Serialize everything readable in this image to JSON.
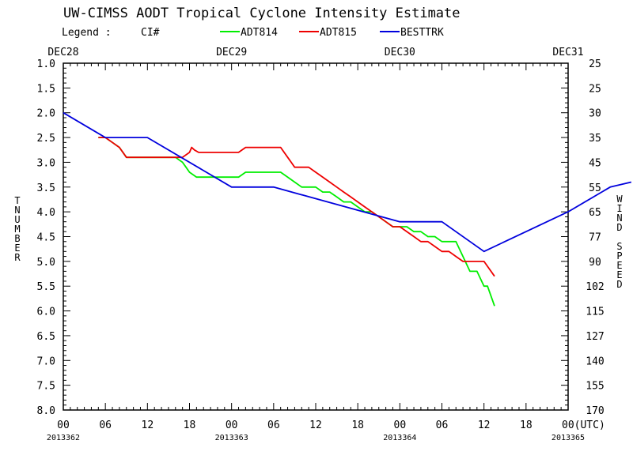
{
  "chart_data": {
    "type": "line",
    "title": "UW-CIMSS AODT Tropical Cyclone Intensity Estimate",
    "legend": {
      "prefix": "Legend :",
      "type_label": "CI#",
      "entries": [
        {
          "name": "ADT814",
          "color": "#00ee00"
        },
        {
          "name": "ADT815",
          "color": "#ee0000"
        },
        {
          "name": "BESTTRK",
          "color": "#0000dd"
        }
      ]
    },
    "ylabel_left": "T NUMBER",
    "ylabel_right": "WIND SPEED",
    "ylim": [
      1.0,
      8.0
    ],
    "xlim_hours": [
      0,
      72
    ],
    "y_ticks": [
      "1.0",
      "1.5",
      "2.0",
      "2.5",
      "3.0",
      "3.5",
      "4.0",
      "4.5",
      "5.0",
      "5.5",
      "6.0",
      "6.5",
      "7.0",
      "7.5",
      "8.0"
    ],
    "wind_ticks": [
      "25",
      "25",
      "30",
      "35",
      "45",
      "55",
      "65",
      "77",
      "90",
      "102",
      "115",
      "127",
      "140",
      "155",
      "170"
    ],
    "top_dates": [
      {
        "label": "DEC28",
        "hour": 0
      },
      {
        "label": "DEC29",
        "hour": 24
      },
      {
        "label": "DEC30",
        "hour": 48
      },
      {
        "label": "DEC31",
        "hour": 72
      }
    ],
    "x_ticks": [
      {
        "hour": 0,
        "label": "00"
      },
      {
        "hour": 6,
        "label": "06"
      },
      {
        "hour": 12,
        "label": "12"
      },
      {
        "hour": 18,
        "label": "18"
      },
      {
        "hour": 24,
        "label": "00"
      },
      {
        "hour": 30,
        "label": "06"
      },
      {
        "hour": 36,
        "label": "12"
      },
      {
        "hour": 42,
        "label": "18"
      },
      {
        "hour": 48,
        "label": "00"
      },
      {
        "hour": 54,
        "label": "06"
      },
      {
        "hour": 60,
        "label": "12"
      },
      {
        "hour": 66,
        "label": "18"
      },
      {
        "hour": 72,
        "label": "00(UTC)"
      }
    ],
    "julian_dates": [
      {
        "label": "2013362",
        "hour": 0
      },
      {
        "label": "2013363",
        "hour": 24
      },
      {
        "label": "2013364",
        "hour": 48
      },
      {
        "label": "2013365",
        "hour": 72
      }
    ],
    "series": [
      {
        "name": "ADT814",
        "color": "#00ee00",
        "points": [
          [
            5,
            2.5
          ],
          [
            6,
            2.5
          ],
          [
            7,
            2.6
          ],
          [
            8,
            2.7
          ],
          [
            9,
            2.9
          ],
          [
            12,
            2.9
          ],
          [
            16,
            2.9
          ],
          [
            17,
            3.0
          ],
          [
            17.5,
            3.1
          ],
          [
            18,
            3.2
          ],
          [
            19,
            3.3
          ],
          [
            22,
            3.3
          ],
          [
            24,
            3.3
          ],
          [
            25,
            3.3
          ],
          [
            26,
            3.2
          ],
          [
            27,
            3.2
          ],
          [
            30,
            3.2
          ],
          [
            31,
            3.2
          ],
          [
            32,
            3.3
          ],
          [
            33,
            3.4
          ],
          [
            34,
            3.5
          ],
          [
            36,
            3.5
          ],
          [
            37,
            3.6
          ],
          [
            38,
            3.6
          ],
          [
            39,
            3.7
          ],
          [
            40,
            3.8
          ],
          [
            41,
            3.8
          ],
          [
            42,
            3.9
          ],
          [
            43,
            4.0
          ],
          [
            44,
            4.0
          ],
          [
            45,
            4.1
          ],
          [
            46,
            4.2
          ],
          [
            47,
            4.3
          ],
          [
            48,
            4.3
          ],
          [
            49,
            4.3
          ],
          [
            50,
            4.4
          ],
          [
            51,
            4.4
          ],
          [
            52,
            4.5
          ],
          [
            53,
            4.5
          ],
          [
            54,
            4.6
          ],
          [
            55,
            4.6
          ],
          [
            56,
            4.6
          ],
          [
            57,
            4.9
          ],
          [
            58,
            5.2
          ],
          [
            59,
            5.2
          ],
          [
            60,
            5.5
          ],
          [
            60.5,
            5.5
          ],
          [
            61.5,
            5.9
          ]
        ]
      },
      {
        "name": "ADT815",
        "color": "#ee0000",
        "points": [
          [
            5,
            2.5
          ],
          [
            6,
            2.5
          ],
          [
            7,
            2.6
          ],
          [
            8,
            2.7
          ],
          [
            9,
            2.9
          ],
          [
            12,
            2.9
          ],
          [
            16,
            2.9
          ],
          [
            17,
            2.9
          ],
          [
            18,
            2.8
          ],
          [
            18.3,
            2.7
          ],
          [
            18.7,
            2.75
          ],
          [
            19.3,
            2.8
          ],
          [
            22,
            2.8
          ],
          [
            24,
            2.8
          ],
          [
            25,
            2.8
          ],
          [
            26,
            2.7
          ],
          [
            27,
            2.7
          ],
          [
            30,
            2.7
          ],
          [
            31,
            2.7
          ],
          [
            32,
            2.9
          ],
          [
            32.5,
            3.0
          ],
          [
            33,
            3.1
          ],
          [
            35,
            3.1
          ],
          [
            36,
            3.2
          ],
          [
            37,
            3.3
          ],
          [
            38,
            3.4
          ],
          [
            39,
            3.5
          ],
          [
            40,
            3.6
          ],
          [
            41,
            3.7
          ],
          [
            42,
            3.8
          ],
          [
            43,
            3.9
          ],
          [
            44,
            4.0
          ],
          [
            45,
            4.1
          ],
          [
            46,
            4.2
          ],
          [
            47,
            4.3
          ],
          [
            48,
            4.3
          ],
          [
            49,
            4.4
          ],
          [
            50,
            4.5
          ],
          [
            51,
            4.6
          ],
          [
            52,
            4.6
          ],
          [
            53,
            4.7
          ],
          [
            54,
            4.8
          ],
          [
            55,
            4.8
          ],
          [
            56,
            4.9
          ],
          [
            57,
            5.0
          ],
          [
            58,
            5.0
          ],
          [
            59,
            5.0
          ],
          [
            60,
            5.0
          ],
          [
            61.5,
            5.3
          ]
        ]
      },
      {
        "name": "BESTTRK",
        "color": "#0000dd",
        "points": [
          [
            0,
            2.0
          ],
          [
            6,
            2.5
          ],
          [
            12,
            2.5
          ],
          [
            24,
            3.5
          ],
          [
            30,
            3.5
          ],
          [
            48,
            4.2
          ],
          [
            54,
            4.2
          ],
          [
            60,
            4.8
          ],
          [
            66,
            4.4
          ],
          [
            72,
            4.0
          ],
          [
            78,
            3.5
          ],
          [
            81,
            3.4
          ]
        ]
      }
    ]
  }
}
